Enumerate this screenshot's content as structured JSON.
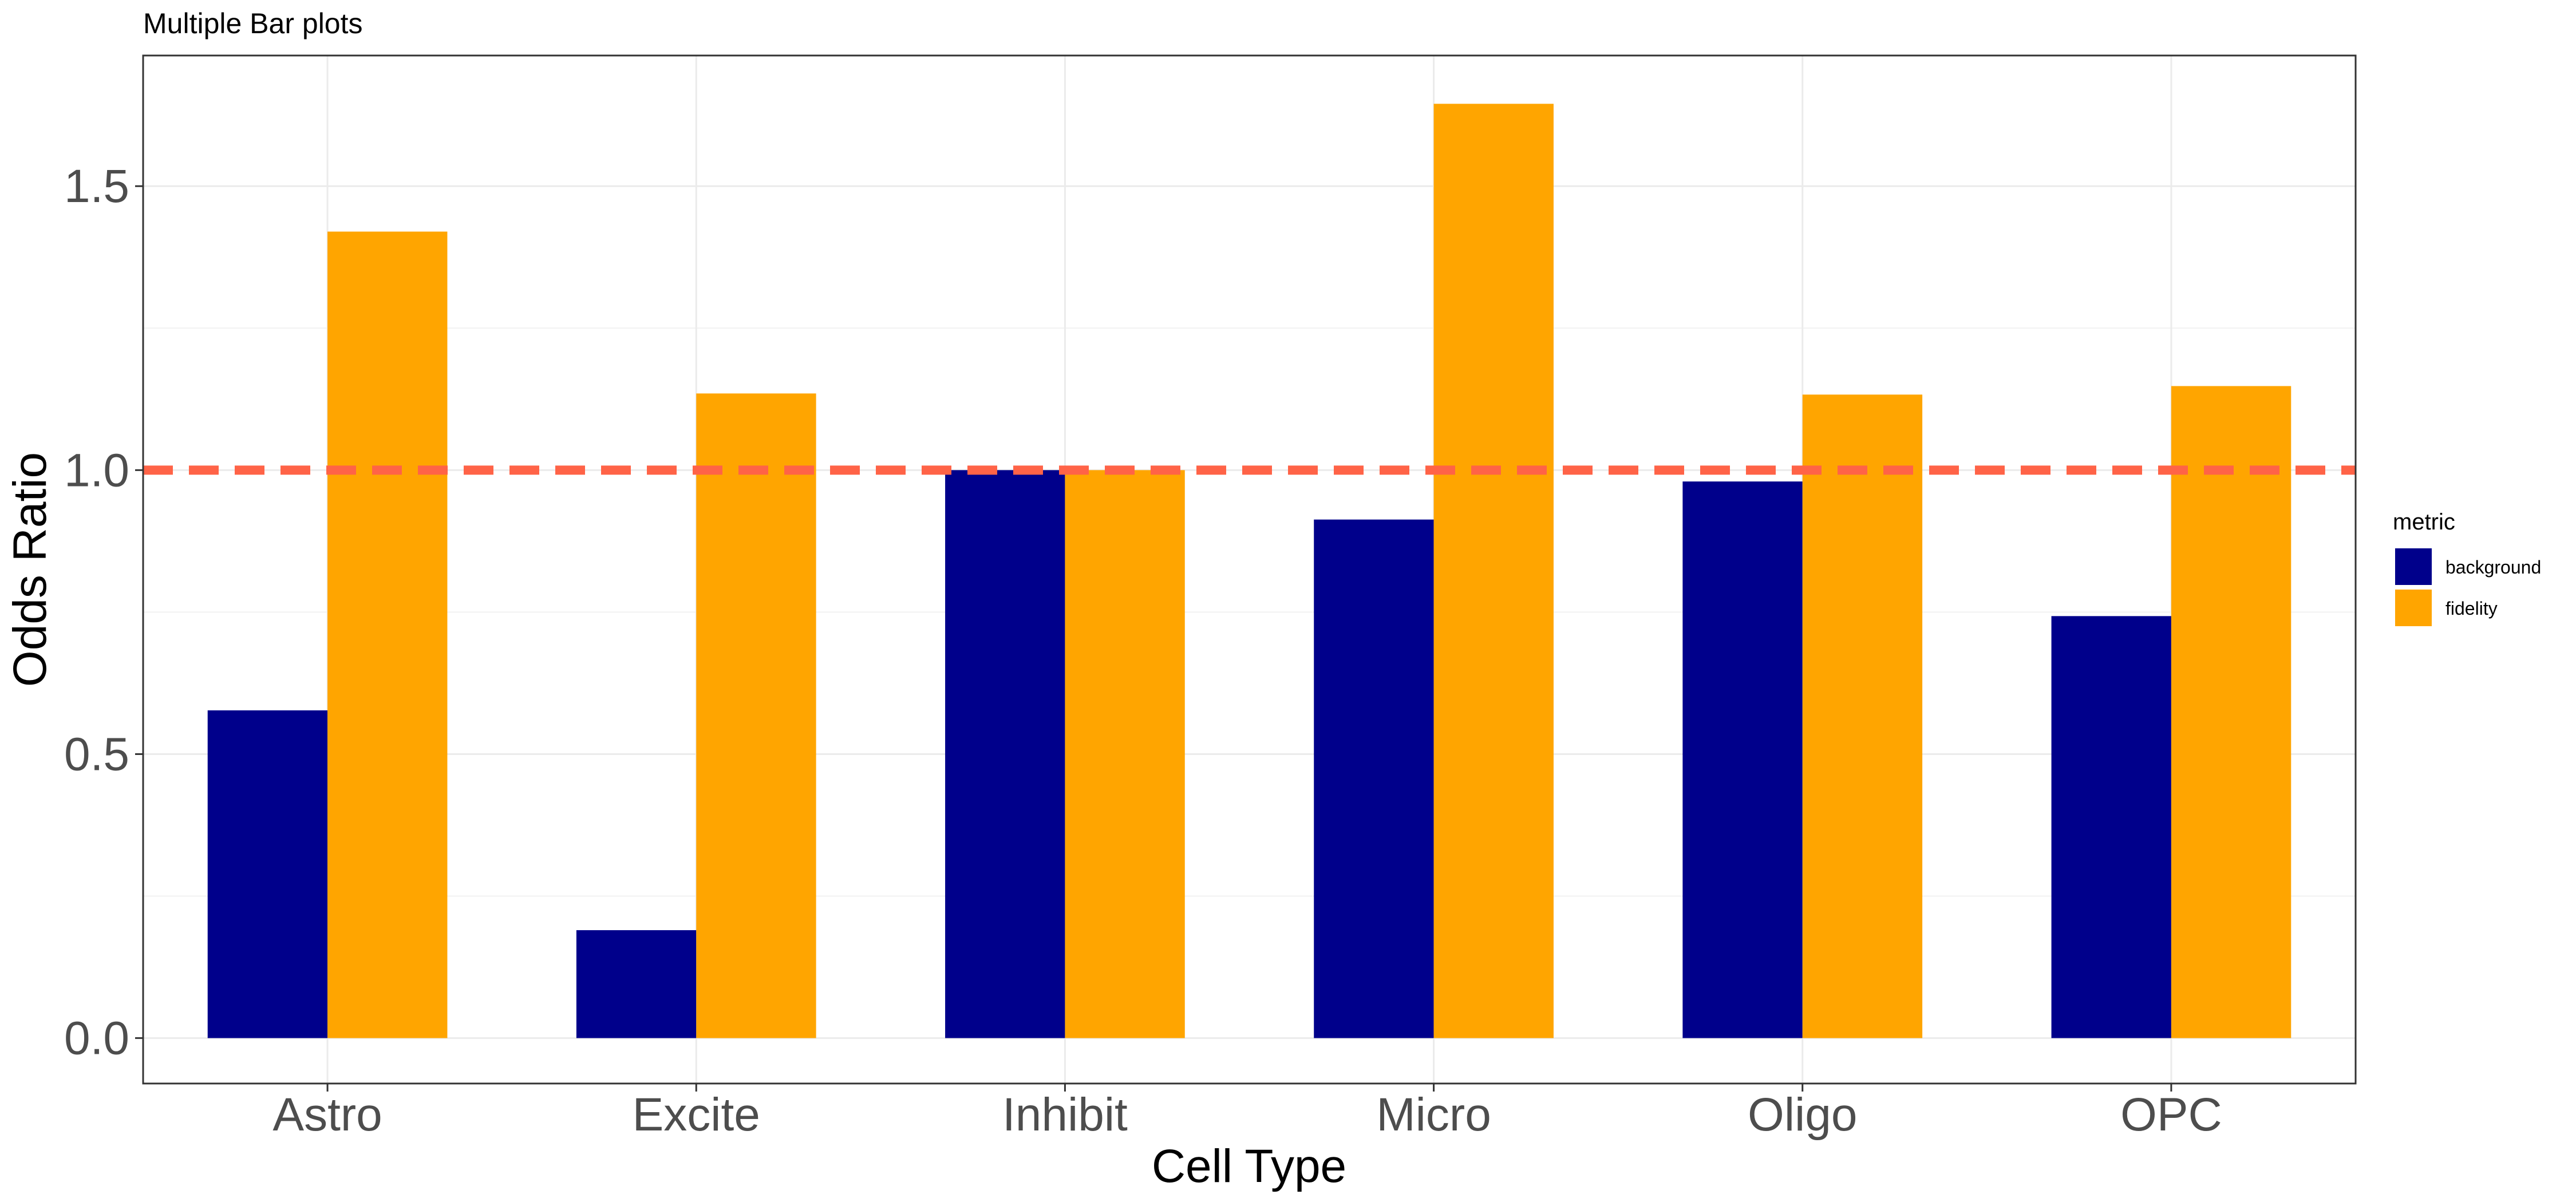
{
  "chart_data": {
    "type": "bar",
    "title": "Multiple Bar plots",
    "xlabel": "Cell Type",
    "ylabel": "Odds Ratio",
    "categories": [
      "Astro",
      "Excite",
      "Inhibit",
      "Micro",
      "Oligo",
      "OPC"
    ],
    "series": [
      {
        "name": "background",
        "color": "#00008B",
        "values": [
          0.577,
          0.19,
          1.0,
          0.913,
          0.98,
          0.743
        ]
      },
      {
        "name": "fidelity",
        "color": "#FFA500",
        "values": [
          1.42,
          1.135,
          1.0,
          1.645,
          1.133,
          1.148
        ]
      }
    ],
    "ylim": [
      -0.08,
      1.73
    ],
    "yticks": [
      0.0,
      0.5,
      1.0,
      1.5
    ],
    "ytick_labels": [
      "0.0",
      "0.5",
      "1.0",
      "1.5"
    ],
    "reference_line": {
      "y": 1.0,
      "color": "#FF6347",
      "style": "dashed"
    },
    "legend": {
      "title": "metric",
      "placement": "right"
    },
    "grid": true
  }
}
